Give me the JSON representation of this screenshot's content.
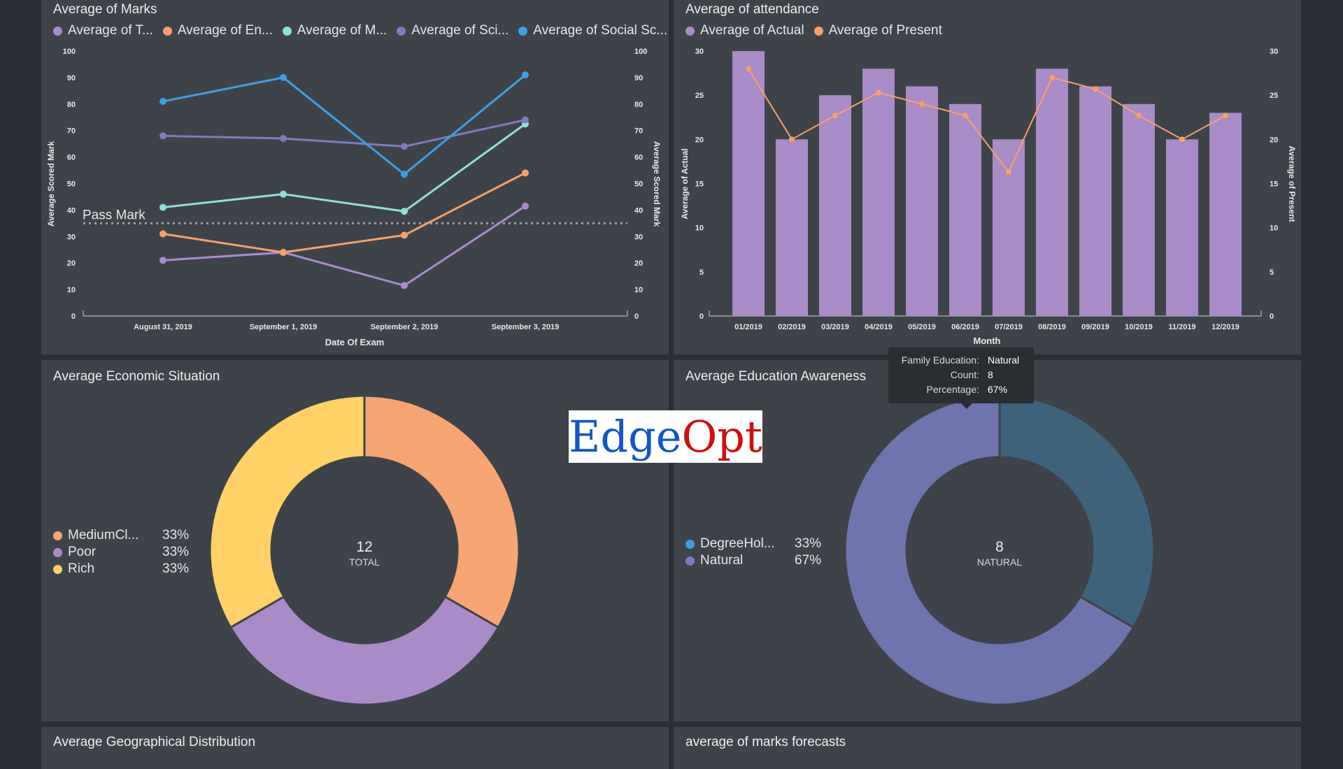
{
  "panels": {
    "marks": {
      "title": "Average of Marks"
    },
    "attendance": {
      "title": "Average of attendance"
    },
    "economic": {
      "title": "Average Economic Situation"
    },
    "education": {
      "title": "Average Education Awareness"
    },
    "geo": {
      "title": "Average Geographical Distribution"
    },
    "forecast": {
      "title": "average of marks forecasts"
    }
  },
  "logo": {
    "part1": "Edge",
    "part2": "Opt",
    "color1": "#1155cc",
    "color2": "#cc1111"
  },
  "tooltip": {
    "rows": [
      {
        "key": "Family Education:",
        "value": "Natural"
      },
      {
        "key": "Count:",
        "value": "8"
      },
      {
        "key": "Percentage:",
        "value": "67%"
      }
    ]
  },
  "chart_data": [
    {
      "type": "line",
      "title": "Average of Marks",
      "xlabel": "Date Of Exam",
      "ylabel": "Average Scored Mark",
      "ylabel_right": "Average Scored Mark",
      "ylim": [
        0,
        100
      ],
      "yticks": [
        0,
        10,
        20,
        30,
        40,
        50,
        60,
        70,
        80,
        90,
        100
      ],
      "categories": [
        "August 31, 2019",
        "September 1, 2019",
        "September 2, 2019",
        "September 3, 2019"
      ],
      "legend_placement": "top",
      "reference_line": {
        "label": "Pass Mark",
        "value": 35
      },
      "series": [
        {
          "name": "Average of T...",
          "color": "#a98bd0",
          "values": [
            21,
            24,
            11.5,
            41.5
          ]
        },
        {
          "name": "Average of En...",
          "color": "#f7a06a",
          "values": [
            31,
            24,
            30.5,
            54
          ]
        },
        {
          "name": "Average of M...",
          "color": "#8fe0d8",
          "values": [
            41,
            46,
            39.5,
            72.5
          ]
        },
        {
          "name": "Average of Sci...",
          "color": "#7d7bbf",
          "values": [
            68,
            67,
            64,
            74
          ]
        },
        {
          "name": "Average of Social Sc...",
          "color": "#3ca0e6",
          "values": [
            81,
            90,
            53.5,
            91
          ]
        }
      ]
    },
    {
      "type": "bar",
      "title": "Average of attendance",
      "xlabel": "Month",
      "ylabel": "Average of Actual",
      "ylabel_right": "Average of Present",
      "ylim": [
        0,
        30
      ],
      "yticks": [
        0,
        5,
        10,
        15,
        20,
        25,
        30
      ],
      "categories": [
        "01/2019",
        "02/2019",
        "03/2019",
        "04/2019",
        "05/2019",
        "06/2019",
        "07/2019",
        "08/2019",
        "09/2019",
        "10/2019",
        "11/2019",
        "12/2019"
      ],
      "legend_placement": "top",
      "series": [
        {
          "name": "Average of Actual",
          "kind": "bar",
          "color": "#a98bc8",
          "values": [
            30,
            20,
            25,
            28,
            26,
            24,
            20,
            28,
            26,
            24,
            20,
            23
          ]
        },
        {
          "name": "Average of Present",
          "kind": "line",
          "color": "#f7a06a",
          "values": [
            28,
            20,
            22.7,
            25.3,
            24,
            22.7,
            16.3,
            27,
            25.7,
            22.7,
            20,
            22.7
          ]
        }
      ]
    },
    {
      "type": "pie",
      "title": "Average Economic Situation",
      "center_value": "12",
      "center_label": "TOTAL",
      "legend_placement": "left",
      "slices": [
        {
          "label": "MediumCl...",
          "percent": "33%",
          "value": 4,
          "color": "#f7a573"
        },
        {
          "label": "Poor",
          "percent": "33%",
          "value": 4,
          "color": "#a98bc8"
        },
        {
          "label": "Rich",
          "percent": "33%",
          "value": 4,
          "color": "#ffd166"
        }
      ]
    },
    {
      "type": "pie",
      "title": "Average Education Awareness",
      "center_value": "8",
      "center_label": "NATURAL",
      "legend_placement": "left",
      "slices": [
        {
          "label": "DegreeHol...",
          "percent": "33%",
          "value": 4,
          "color": "#3c6379",
          "legend_color": "#3ca0e6"
        },
        {
          "label": "Natural",
          "percent": "67%",
          "value": 8,
          "color": "#6f74ad",
          "legend_color": "#7d7bbf"
        }
      ]
    }
  ]
}
